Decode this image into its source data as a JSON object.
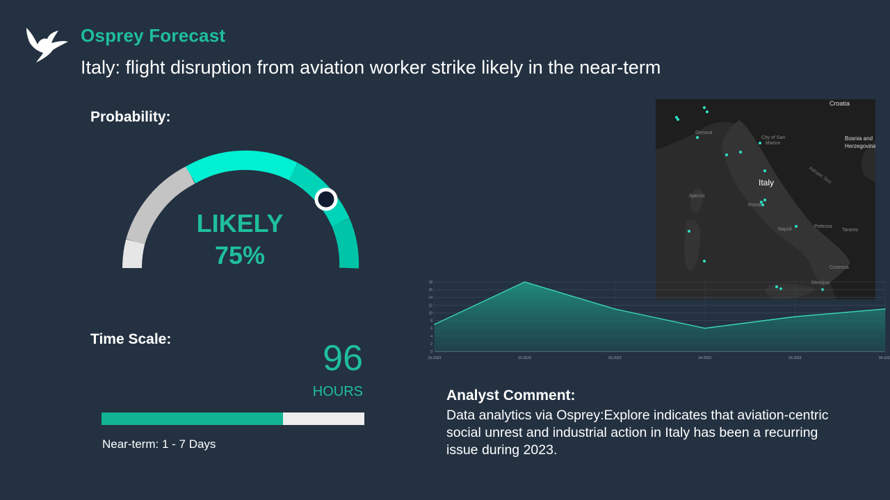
{
  "brand": "Osprey Forecast",
  "headline": "Italy: flight disruption from aviation worker strike likely in the near-term",
  "probability": {
    "label": "Probability:",
    "level": "LIKELY",
    "percent_text": "75%",
    "value": 0.75
  },
  "time_scale": {
    "label": "Time Scale:",
    "value": "96",
    "unit": "HOURS",
    "bar_fill_fraction": 0.69,
    "range_text": "Near-term: 1 - 7 Days"
  },
  "map": {
    "labels": {
      "croatia": "Croatia",
      "bosnia_1": "Bosnia and",
      "bosnia_2": "Herzegovina",
      "italy": "Italy",
      "adriatic": "Adriatic Sea",
      "city_san": "City of San",
      "marino": "Marino",
      "ajaccio": "Ajaccio",
      "roma": "Roma",
      "napoli": "Napoli",
      "genova": "Genova",
      "potenza": "Potenza",
      "taranto": "Taranto",
      "cosenza": "Cosenza",
      "messina": "Messina"
    }
  },
  "analyst": {
    "label": "Analyst Comment:",
    "text": "Data analytics via Osprey:Explore indicates that aviation-centric social unrest and industrial action in Italy has been a recurring issue during 2023."
  },
  "colors": {
    "background": "#233141",
    "accent": "#1fbf9c",
    "gauge_bright": "#00f0d2",
    "gauge_gray": "#c4c4c4"
  },
  "chart_data": {
    "type": "area",
    "x": [
      "01-2023",
      "02-2023",
      "03-2023",
      "04-2023",
      "05-2023",
      "06-2023"
    ],
    "values": [
      7,
      18,
      11,
      6,
      9,
      11
    ],
    "yticks": [
      0,
      2,
      4,
      6,
      8,
      10,
      12,
      14,
      16,
      18
    ],
    "ylim": [
      0,
      18
    ],
    "grid": true
  }
}
